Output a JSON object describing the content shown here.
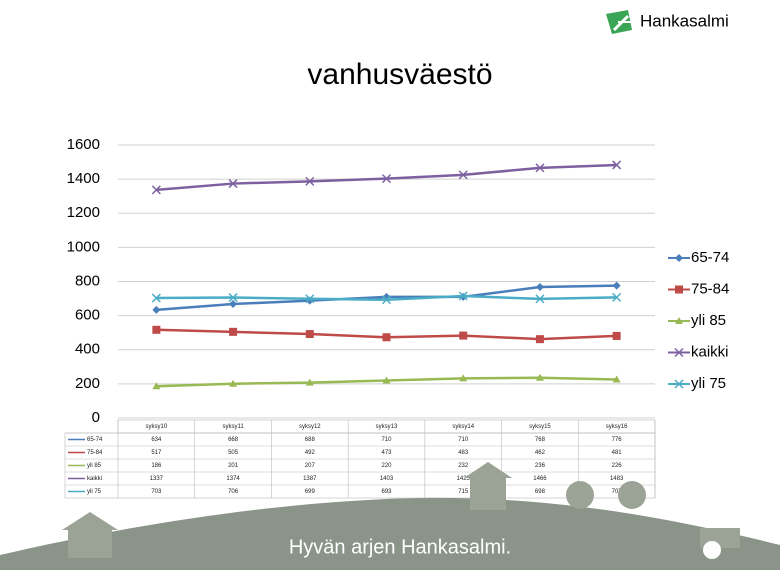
{
  "logo": {
    "text": "Hankasalmi"
  },
  "footer": {
    "text": "Hyvän arjen Hankasalmi."
  },
  "chart_data": {
    "type": "line",
    "title": "vanhusväestö",
    "categories": [
      "syksy10",
      "syksy11",
      "syksy12",
      "syksy13",
      "syksy14",
      "syksy15",
      "syksy16"
    ],
    "series": [
      {
        "name": "65-74",
        "color": "#4a7ebb",
        "marker": "diamond",
        "values": [
          634,
          668,
          688,
          710,
          710,
          768,
          776
        ]
      },
      {
        "name": "75-84",
        "color": "#be4b48",
        "marker": "square",
        "values": [
          517,
          505,
          492,
          473,
          483,
          462,
          481
        ]
      },
      {
        "name": "yli 85",
        "color": "#98b954",
        "marker": "triangle",
        "values": [
          186,
          201,
          207,
          220,
          232,
          236,
          226
        ]
      },
      {
        "name": "kaikki",
        "color": "#7d60a0",
        "marker": "x",
        "values": [
          1337,
          1374,
          1387,
          1403,
          1425,
          1466,
          1483
        ]
      },
      {
        "name": "yli 75",
        "color": "#4bacc6",
        "marker": "x",
        "values": [
          703,
          706,
          699,
          693,
          715,
          698,
          707
        ]
      }
    ],
    "ylim": [
      0,
      1600
    ],
    "yticks": [
      0,
      200,
      400,
      600,
      800,
      1000,
      1200,
      1400,
      1600
    ],
    "grid": true,
    "legend": "right",
    "data_table": true
  }
}
